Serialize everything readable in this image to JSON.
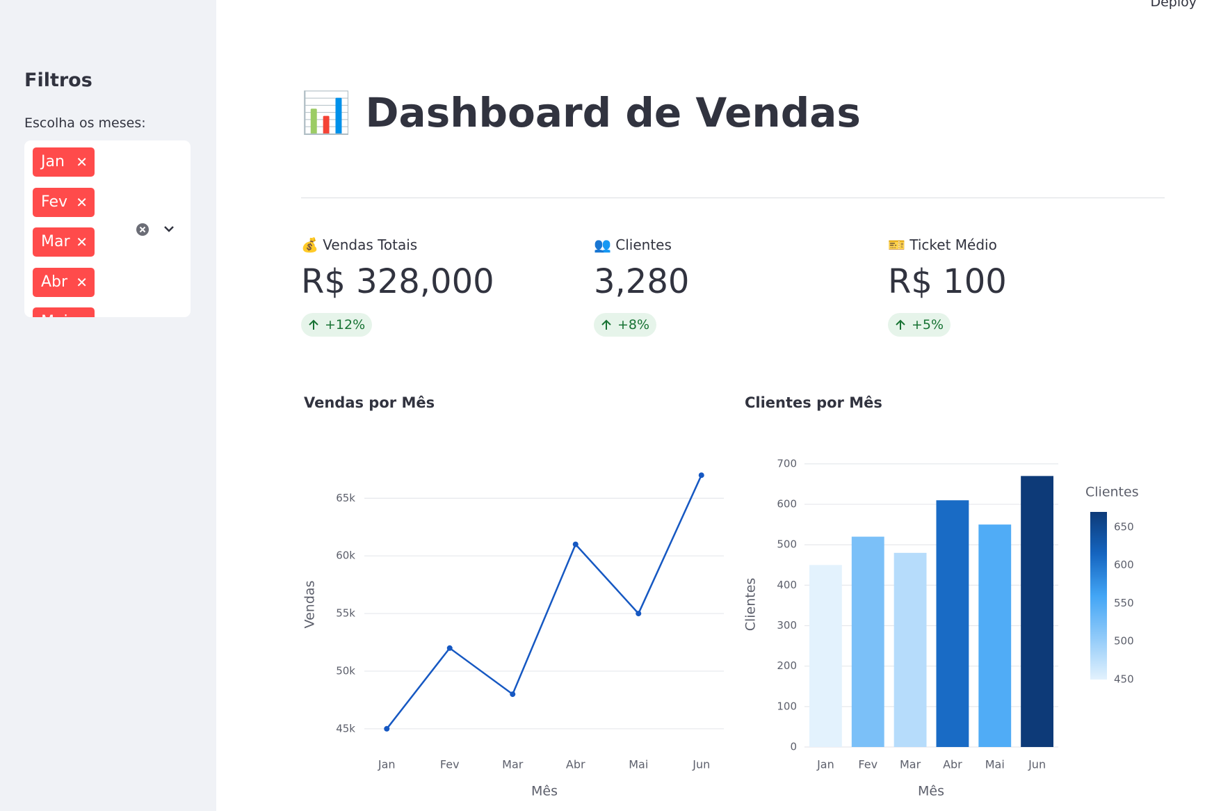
{
  "deploy": "Deploy",
  "sidebar": {
    "title": "Filtros",
    "label": "Escolha os meses:",
    "tags": [
      "Jan",
      "Fev",
      "Mar",
      "Abr",
      "Mai"
    ]
  },
  "header": {
    "title": "📊 Dashboard de Vendas"
  },
  "metrics": [
    {
      "label": "💰 Vendas Totais",
      "value": "R$ 328,000",
      "delta": "+12%"
    },
    {
      "label": "👥 Clientes",
      "value": "3,280",
      "delta": "+8%"
    },
    {
      "label": "🎫 Ticket Médio",
      "value": "R$ 100",
      "delta": "+5%"
    }
  ],
  "chart_data": [
    {
      "type": "line",
      "title": "Vendas por Mês",
      "x_label": "Mês",
      "y_label": "Vendas",
      "categories": [
        "Jan",
        "Fev",
        "Mar",
        "Abr",
        "Mai",
        "Jun"
      ],
      "values": [
        45000,
        52000,
        48000,
        61000,
        55000,
        67000
      ],
      "color": "#1658c2",
      "ylim": [
        43600,
        68400
      ],
      "yticks": [
        {
          "value": 45000,
          "label": "45k"
        },
        {
          "value": 50000,
          "label": "50k"
        },
        {
          "value": 55000,
          "label": "55k"
        },
        {
          "value": 60000,
          "label": "60k"
        },
        {
          "value": 65000,
          "label": "65k"
        }
      ],
      "grid": true
    },
    {
      "type": "bar",
      "title": "Clientes por Mês",
      "x_label": "Mês",
      "y_label": "Clientes",
      "categories": [
        "Jan",
        "Fev",
        "Mar",
        "Abr",
        "Mai",
        "Jun"
      ],
      "values": [
        450,
        520,
        480,
        610,
        550,
        670
      ],
      "colorscale": [
        "#e3f2fd",
        "#90caf9",
        "#42a5f5",
        "#1565c0",
        "#0d3a78"
      ],
      "colorbar_title": "Clientes",
      "colorbar_ticks": [
        450,
        500,
        550,
        600,
        650
      ],
      "ylim": [
        0,
        705
      ],
      "yticks": [
        0,
        100,
        200,
        300,
        400,
        500,
        600,
        700
      ],
      "grid": true
    }
  ]
}
